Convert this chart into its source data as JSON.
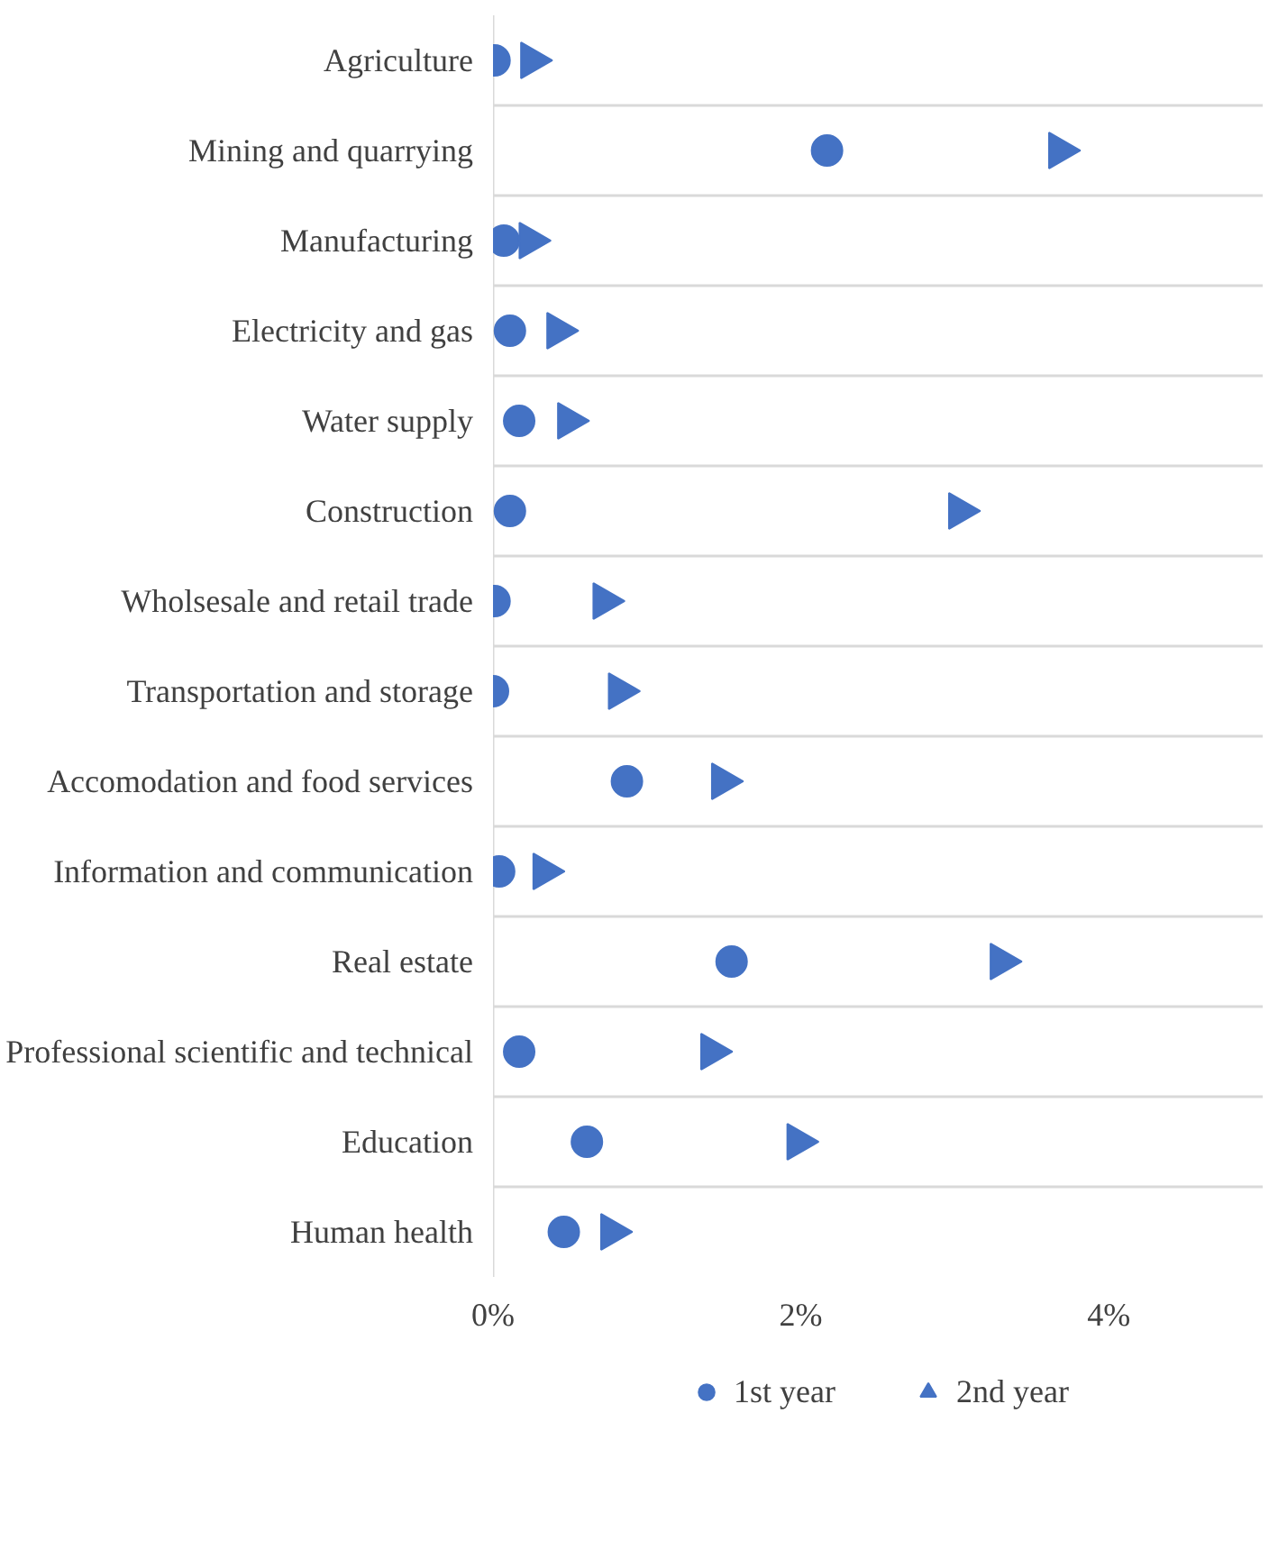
{
  "chart_data": {
    "type": "scatter",
    "categories": [
      "Agriculture",
      "Mining and quarrying",
      "Manufacturing",
      "Electricity and gas",
      "Water supply",
      "Construction",
      "Wholsesale and retail trade",
      "Transportation and storage",
      "Accomodation and food services",
      "Information and communication",
      "Real estate",
      "Professional scientific and technical",
      "Education",
      "Human health"
    ],
    "orientation": "horizontal",
    "series": [
      {
        "name": "1st year",
        "color": "#4472c4",
        "marker": "circle",
        "values": [
          0.01,
          2.17,
          0.07,
          0.11,
          0.17,
          0.11,
          0.01,
          0.0,
          0.87,
          0.04,
          1.55,
          0.17,
          0.61,
          0.46
        ]
      },
      {
        "name": "2nd year",
        "color": "#4472c4",
        "marker": "triangle",
        "values": [
          0.25,
          3.68,
          0.24,
          0.42,
          0.49,
          3.03,
          0.72,
          0.82,
          1.49,
          0.33,
          3.3,
          1.42,
          1.98,
          0.77
        ]
      }
    ],
    "xlim": [
      0,
      5
    ],
    "xticks": [
      {
        "value": 0,
        "label": "0%"
      },
      {
        "value": 2,
        "label": "2%"
      },
      {
        "value": 4,
        "label": "4%"
      }
    ],
    "grid": "y",
    "legend": "bottom"
  }
}
